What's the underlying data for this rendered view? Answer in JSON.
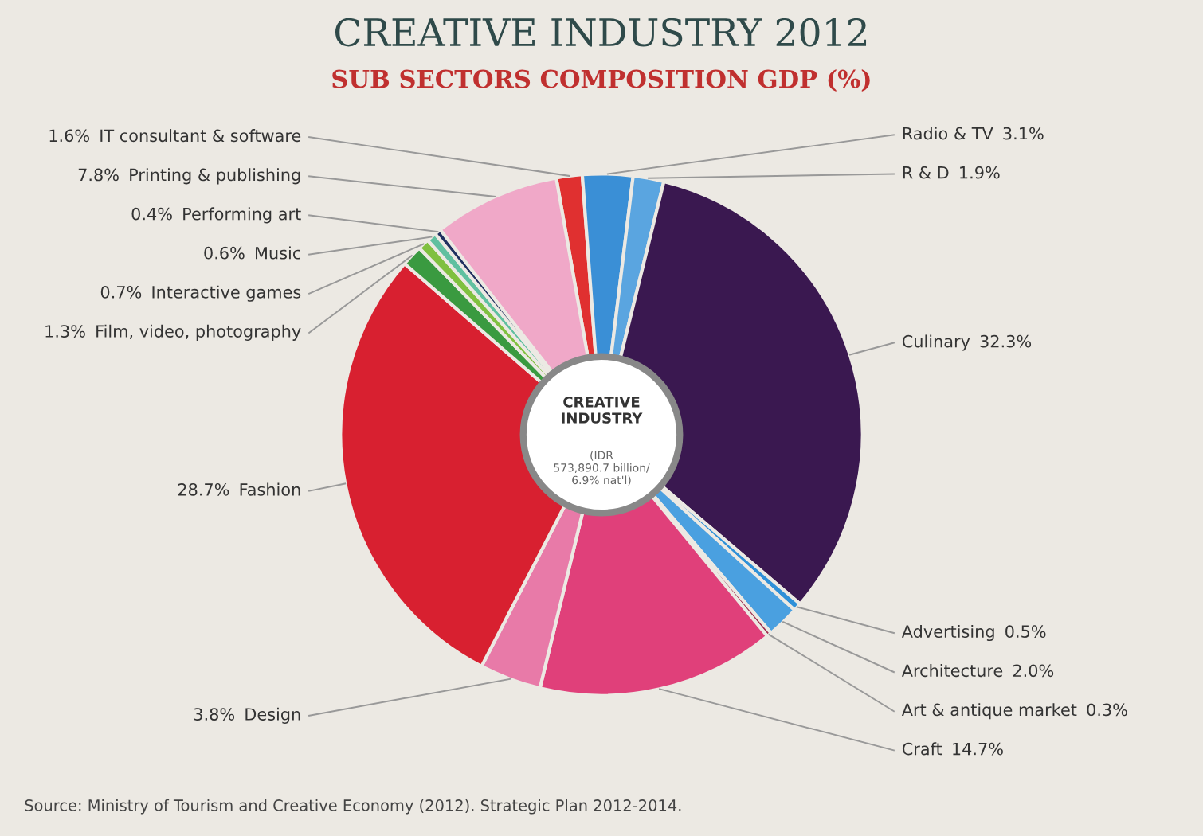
{
  "chart_data": {
    "type": "donut",
    "title": "CREATIVE INDUSTRY 2012",
    "subtitle": "SUB SECTORS COMPOSITION GDP (%)",
    "categories": [
      "IT consultant & software",
      "Radio & TV",
      "R & D",
      "Culinary",
      "Advertising",
      "Architecture",
      "Art & antique market",
      "Craft",
      "Design",
      "Fashion",
      "Film, video, photography",
      "Interactive games",
      "Music",
      "Performing art",
      "Printing & publishing"
    ],
    "values": [
      1.6,
      3.1,
      1.9,
      32.3,
      0.5,
      2.0,
      0.3,
      14.7,
      3.8,
      28.7,
      1.3,
      0.7,
      0.6,
      0.4,
      7.8
    ],
    "colors": [
      "#e03030",
      "#3a8fd6",
      "#5aa5e0",
      "#3a1850",
      "#2e90d8",
      "#4aa0e0",
      "#a03050",
      "#e0407a",
      "#e87aa8",
      "#d82030",
      "#3a9a40",
      "#80c040",
      "#60c0a0",
      "#203060",
      "#f0a8c8"
    ],
    "value_labels": [
      "1.6%",
      "3.1%",
      "1.9%",
      "32.3%",
      "0.5%",
      "2.0%",
      "0.3%",
      "14.7%",
      "3.8%",
      "28.7%",
      "1.3%",
      "0.7%",
      "0.6%",
      "0.4%",
      "7.8%"
    ],
    "annotations": [
      "CREATIVE INDUSTRY",
      "(IDR 573,890.7 billion/ 6.9% nat'l)",
      "Source: Ministry of Tourism and Creative Economy (2012). Strategic Plan 2012-2014."
    ]
  }
}
